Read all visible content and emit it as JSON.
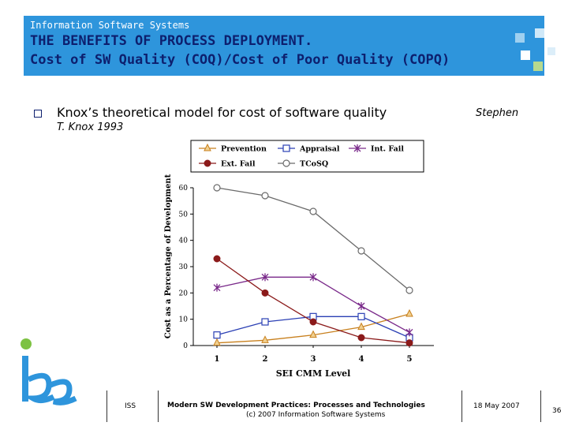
{
  "header": {
    "org": "Information Software Systems",
    "title_line1": "THE BENEFITS OF PROCESS DEPLOYMENT.",
    "title_line2": "Cost of SW Quality (COQ)/Cost of Poor Quality (COPQ)",
    "band_color": "#2e95dc",
    "title_color": "#0d1f6e"
  },
  "bullet": {
    "text": "Knox’s theoretical model for cost of software quality",
    "citation_part1": "Stephen",
    "citation_part2": "T. Knox 1993"
  },
  "chart_data": {
    "type": "line",
    "xlabel": "SEI CMM Level",
    "ylabel": "Cost as a Percentage of Development",
    "x": [
      1,
      2,
      3,
      4,
      5
    ],
    "ylim": [
      0,
      60
    ],
    "yticks": [
      0,
      10,
      20,
      30,
      40,
      50,
      60
    ],
    "legend_position": "top",
    "series": [
      {
        "name": "Prevention",
        "color": "#c8801e",
        "marker": "triangle",
        "values": [
          1,
          2,
          4,
          7,
          12
        ]
      },
      {
        "name": "Appraisal",
        "color": "#2a3fb4",
        "marker": "square",
        "values": [
          4,
          9,
          11,
          11,
          3
        ]
      },
      {
        "name": "Int. Fail",
        "color": "#7a2a8a",
        "marker": "star",
        "values": [
          22,
          26,
          26,
          15,
          5
        ]
      },
      {
        "name": "Ext. Fail",
        "color": "#8b1a1a",
        "marker": "circle-filled",
        "values": [
          33,
          20,
          9,
          3,
          1
        ]
      },
      {
        "name": "TCoSQ",
        "color": "#6a6a6a",
        "marker": "circle-open",
        "values": [
          60,
          57,
          51,
          36,
          21
        ]
      }
    ]
  },
  "footer": {
    "left": "ISS",
    "center_line1": "Modern SW Development Practices: Processes and Technologies",
    "center_line2": "(c) 2007 Information Software Systems",
    "date": "18 May 2007",
    "page": "36"
  },
  "logo": {
    "text": "iss",
    "colors": [
      "#7dc242",
      "#2e95dc"
    ]
  }
}
